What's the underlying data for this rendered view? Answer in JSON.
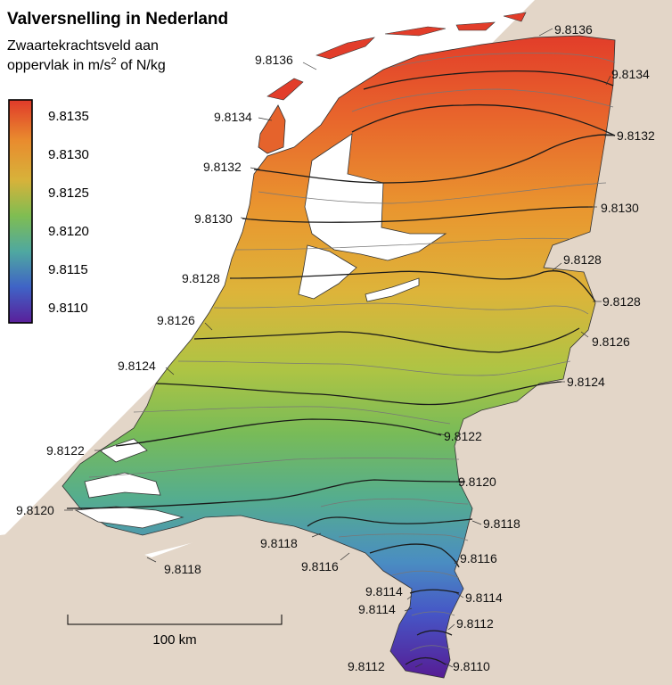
{
  "title": "Valversnelling in Nederland",
  "subtitle": {
    "line1": "Zwaartekrachtsveld aan",
    "line2_prefix": "oppervlak in m/s",
    "line2_sup": "2",
    "line2_suffix": " of N/kg"
  },
  "legend": {
    "ticks": [
      "9.8135",
      "9.8130",
      "9.8125",
      "9.8120",
      "9.8115",
      "9.8110"
    ],
    "colors": [
      "#e03a2a",
      "#e98b2e",
      "#d7b23a",
      "#7fbd52",
      "#4fa8a0",
      "#3f63c6",
      "#5a1f9a"
    ]
  },
  "scale_bar": {
    "label": "100 km"
  },
  "contour_labels": [
    "9.8136",
    "9.8136",
    "9.8134",
    "9.8134",
    "9.8132",
    "9.8132",
    "9.8130",
    "9.8130",
    "9.8128",
    "9.8128",
    "9.8128",
    "9.8126",
    "9.8126",
    "9.8124",
    "9.8124",
    "9.8122",
    "9.8122",
    "9.8120",
    "9.8120",
    "9.8118",
    "9.8118",
    "9.8118",
    "9.8116",
    "9.8116",
    "9.8114",
    "9.8114",
    "9.8114",
    "9.8112",
    "9.8112",
    "9.8110"
  ],
  "colors": {
    "surroundings": "#e3d6c8",
    "water": "#ffffff",
    "contour_major": "#1a1a1a",
    "contour_minor": "#777777"
  }
}
